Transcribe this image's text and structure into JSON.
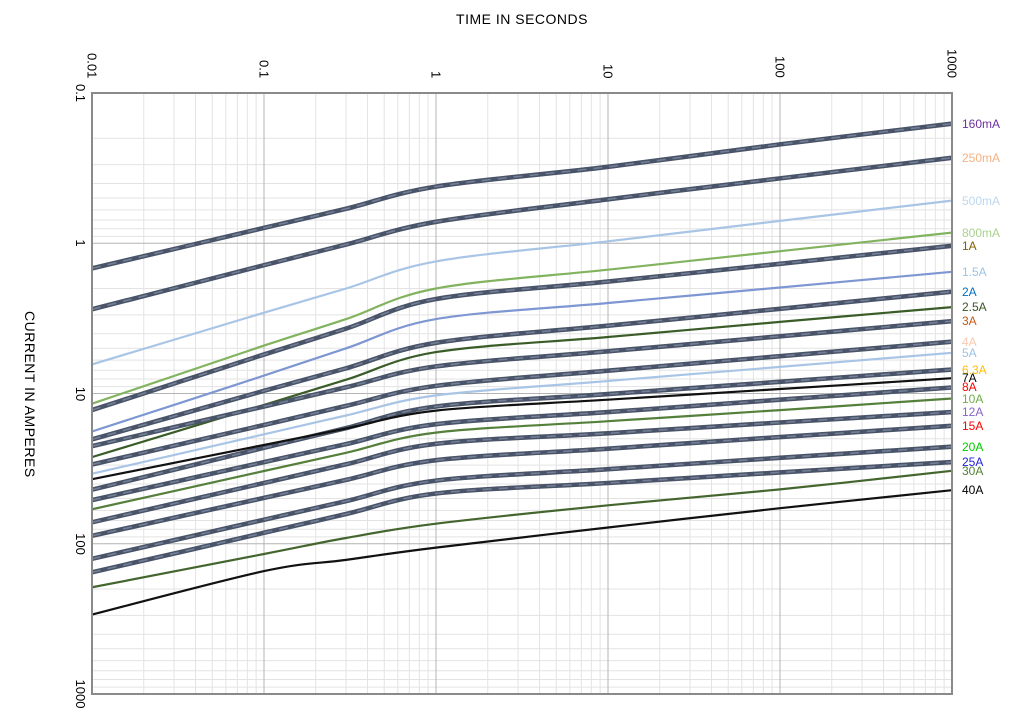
{
  "page": {
    "background": "#ffffff"
  },
  "chart_data": {
    "type": "line",
    "title": "",
    "xlabel": "TIME IN SECONDS",
    "ylabel": "CURRENT IN AMPERES",
    "x_axis": {
      "scale": "log",
      "min": 0.01,
      "max": 1000,
      "position": "top",
      "tick_values": [
        0.01,
        0.1,
        1,
        10,
        100,
        1000
      ],
      "tick_labels": [
        "0.01",
        "0.1",
        "1",
        "10",
        "100",
        "1000"
      ]
    },
    "y_axis": {
      "scale": "log",
      "min": 0.1,
      "max": 1000,
      "position": "left",
      "inverted": true,
      "tick_values": [
        0.1,
        1,
        10,
        100,
        1000
      ],
      "tick_labels": [
        "0.1",
        "1",
        "10",
        "100",
        "1000"
      ]
    },
    "grid": {
      "minor_color": "#e3e3e3",
      "major_color": "#b4b4b4",
      "border_color": "#8a8a8a",
      "background": "#ffffff"
    },
    "legend_position": "right",
    "times": [
      0.01,
      0.1,
      0.3,
      1,
      10,
      100,
      1000
    ],
    "styles": {
      "thick_gray_color": "#4a5468",
      "thick_gray_overlay": "#7a87a0",
      "thick_width": 4.6,
      "thin_width": 2.2
    },
    "series": [
      {
        "label": "160mA",
        "label_color": "#7030A0",
        "line_color": "#4a5468",
        "line_style": "thick-gray",
        "amps_at_times": [
          1.47,
          0.79,
          0.59,
          0.42,
          0.31,
          0.22,
          0.16
        ]
      },
      {
        "label": "250mA",
        "label_color": "#F4B183",
        "line_color": "#4a5468",
        "line_style": "thick-gray",
        "amps_at_times": [
          2.75,
          1.4,
          1.02,
          0.72,
          0.51,
          0.37,
          0.27
        ]
      },
      {
        "label": "500mA",
        "label_color": "#BDD7EE",
        "line_color": "#a9c5e5",
        "line_style": "thin",
        "amps_at_times": [
          6.4,
          2.9,
          2.0,
          1.32,
          0.97,
          0.71,
          0.52
        ]
      },
      {
        "label": "800mA",
        "label_color": "#A9D18E",
        "line_color": "#82b35e",
        "line_style": "thin",
        "amps_at_times": [
          11.7,
          4.8,
          3.2,
          2.0,
          1.5,
          1.13,
          0.85
        ]
      },
      {
        "label": "1A",
        "label_color": "#7F6000",
        "line_color": "#4a5468",
        "line_style": "thick-gray",
        "amps_at_times": [
          12.9,
          5.5,
          3.7,
          2.35,
          1.8,
          1.37,
          1.04
        ]
      },
      {
        "label": "1.5A",
        "label_color": "#9DC3E6",
        "line_color": "#7e97d2",
        "line_style": "thin",
        "amps_at_times": [
          17.9,
          7.6,
          5.0,
          3.2,
          2.5,
          1.97,
          1.55
        ]
      },
      {
        "label": "2A",
        "label_color": "#0070C0",
        "line_color": "#4a5468",
        "line_style": "thick-gray",
        "amps_at_times": [
          20.2,
          9.6,
          6.8,
          4.6,
          3.54,
          2.73,
          2.1
        ]
      },
      {
        "label": "2.5A",
        "label_color": "#375623",
        "line_color": "#3a5c28",
        "line_style": "thin",
        "amps_at_times": [
          26.5,
          11.9,
          8.1,
          5.3,
          4.21,
          3.34,
          2.66
        ]
      },
      {
        "label": "3A",
        "label_color": "#C55A11",
        "line_color": "#4a5468",
        "line_style": "thick-gray",
        "amps_at_times": [
          22.4,
          12.2,
          9.1,
          6.6,
          5.24,
          4.16,
          3.3
        ]
      },
      {
        "label": "4A",
        "label_color": "#F8CBAD",
        "line_color": "#4a5468",
        "line_style": "thick-gray",
        "amps_at_times": [
          29.7,
          16.2,
          12.1,
          8.9,
          7.05,
          5.65,
          4.52
        ]
      },
      {
        "label": "5A",
        "label_color": "#9DC3E6",
        "line_color": "#a9c5e5",
        "line_style": "thin",
        "amps_at_times": [
          34.2,
          18.7,
          14.0,
          10.3,
          8.26,
          6.65,
          5.36
        ]
      },
      {
        "label": "6.3A",
        "label_color": "#FFC000",
        "line_color": "#4a5468",
        "line_style": "thick-gray",
        "amps_at_times": [
          43.7,
          23.0,
          17.0,
          12.2,
          10.1,
          8.36,
          6.93
        ]
      },
      {
        "label": "7A",
        "label_color": "#000000",
        "line_color": "#111111",
        "line_style": "thin",
        "amps_at_times": [
          37.2,
          22.0,
          17.1,
          13.0,
          11.0,
          9.34,
          7.91
        ]
      },
      {
        "label": "8A",
        "label_color": "#FF0000",
        "line_color": "#4a5468",
        "line_style": "thick-gray",
        "amps_at_times": [
          51.2,
          28.6,
          21.7,
          16.0,
          13.3,
          11.0,
          9.12
        ]
      },
      {
        "label": "10A",
        "label_color": "#70AD47",
        "line_color": "#55803c",
        "line_style": "thin",
        "amps_at_times": [
          59.0,
          32.8,
          24.8,
          18.2,
          15.3,
          12.9,
          10.8
        ]
      },
      {
        "label": "12A",
        "label_color": "#8864C8",
        "line_color": "#4a5468",
        "line_style": "thick-gray",
        "amps_at_times": [
          72.0,
          39.4,
          29.6,
          21.6,
          18.4,
          15.6,
          13.3
        ]
      },
      {
        "label": "15A",
        "label_color": "#FF0000",
        "line_color": "#4a5468",
        "line_style": "thick-gray",
        "amps_at_times": [
          88.5,
          49.5,
          37.6,
          27.8,
          23.3,
          19.5,
          16.4
        ]
      },
      {
        "label": "20A",
        "label_color": "#00CC00",
        "line_color": "#4a5468",
        "line_style": "thick-gray",
        "amps_at_times": [
          126,
          69.2,
          52.0,
          38.0,
          31.9,
          26.8,
          22.6
        ]
      },
      {
        "label": "25A",
        "label_color": "#2323DC",
        "line_color": "#4a5468",
        "line_style": "thick-gray",
        "amps_at_times": [
          155,
          84.6,
          63.4,
          46.3,
          39.4,
          33.5,
          28.6
        ]
      },
      {
        "label": "30A",
        "label_color": "#538135",
        "line_color": "#44662e",
        "line_style": "thin",
        "amps_at_times": [
          195,
          117,
          91.5,
          73.5,
          55.5,
          43.5,
          32.7
        ]
      },
      {
        "label": "40A",
        "label_color": "#000000",
        "line_color": "#111111",
        "line_style": "thin",
        "amps_at_times": [
          296,
          152,
          128,
          106,
          78.0,
          58.0,
          44.0
        ]
      }
    ]
  }
}
